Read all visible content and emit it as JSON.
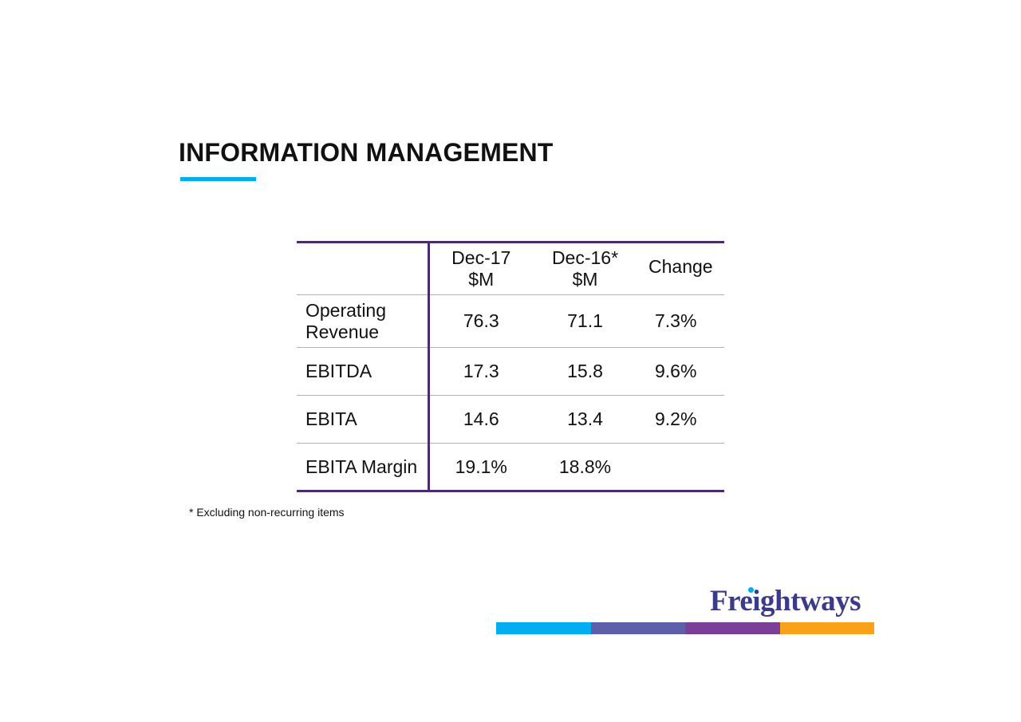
{
  "slide": {
    "title": "INFORMATION MANAGEMENT",
    "accent_color": "#00aeef"
  },
  "table": {
    "headers": {
      "dec17": [
        "Dec-17",
        "$M"
      ],
      "dec16": [
        "Dec-16*",
        "$M"
      ],
      "change": "Change"
    },
    "rows": [
      {
        "label": [
          "Operating",
          "Revenue"
        ],
        "dec17": "76.3",
        "dec16": "71.1",
        "change": "7.3%"
      },
      {
        "label": [
          "EBITDA"
        ],
        "dec17": "17.3",
        "dec16": "15.8",
        "change": "9.6%"
      },
      {
        "label": [
          "EBITA"
        ],
        "dec17": "14.6",
        "dec16": "13.4",
        "change": "9.2%"
      },
      {
        "label": [
          "EBITA Margin"
        ],
        "dec17": "19.1%",
        "dec16": "18.8%",
        "change": ""
      }
    ],
    "rule_color": "#4b2a6e"
  },
  "footnote": "* Excluding non-recurring items",
  "branding": {
    "logo_text": "Freightways",
    "logo_color": "#3b3b8a",
    "logo_dot_color": "#00aeef",
    "bar_colors": [
      "#00aeef",
      "#5d5fa8",
      "#7b3f98",
      "#f9a11b"
    ]
  }
}
